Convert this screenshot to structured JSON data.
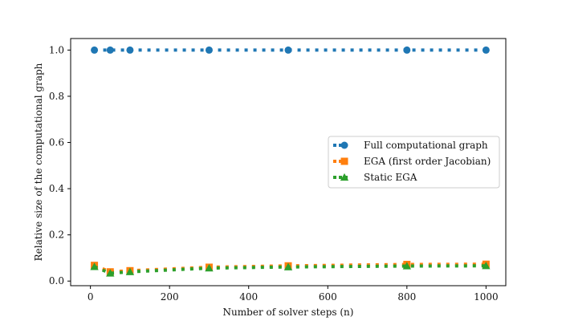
{
  "chart_data": {
    "type": "line",
    "title": "",
    "xlabel": "Number of solver steps (n)",
    "ylabel": "Relative size of the computational graph",
    "xlim": [
      -50,
      1050
    ],
    "ylim": [
      -0.02,
      1.05
    ],
    "xticks": [
      0,
      200,
      400,
      600,
      800,
      1000
    ],
    "yticks": [
      0.0,
      0.2,
      0.4,
      0.6,
      0.8,
      1.0
    ],
    "xtick_labels": [
      "0",
      "200",
      "400",
      "600",
      "800",
      "1000"
    ],
    "ytick_labels": [
      "0.0",
      "0.2",
      "0.4",
      "0.6",
      "0.8",
      "1.0"
    ],
    "grid": false,
    "legend_position": "center-right",
    "series": [
      {
        "name": "Full computational graph",
        "color": "#1f77b4",
        "marker": "circle",
        "line_style": "dotted",
        "x": [
          10,
          50,
          100,
          300,
          500,
          800,
          1000
        ],
        "y": [
          1.0,
          1.0,
          1.0,
          1.0,
          1.0,
          1.0,
          1.0
        ]
      },
      {
        "name": "EGA (first order Jacobian)",
        "color": "#ff7f0e",
        "marker": "square",
        "line_style": "dotted",
        "x": [
          10,
          50,
          100,
          300,
          500,
          800,
          1000
        ],
        "y": [
          0.068,
          0.04,
          0.045,
          0.06,
          0.066,
          0.072,
          0.073
        ]
      },
      {
        "name": "Static EGA",
        "color": "#2ca02c",
        "marker": "triangle",
        "line_style": "dotted",
        "x": [
          10,
          50,
          100,
          300,
          500,
          800,
          1000
        ],
        "y": [
          0.062,
          0.034,
          0.04,
          0.056,
          0.061,
          0.065,
          0.066
        ]
      }
    ]
  }
}
